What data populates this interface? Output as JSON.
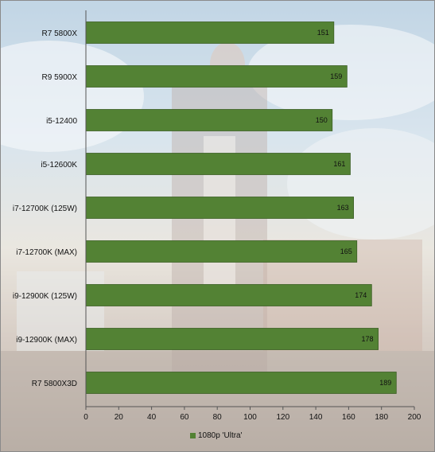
{
  "chart_data": {
    "type": "bar",
    "orientation": "horizontal",
    "categories": [
      "R7 5800X",
      "R9 5900X",
      "i5-12400",
      "i5-12600K",
      "i7-12700K (125W)",
      "i7-12700K (MAX)",
      "i9-12900K (125W)",
      "i9-12900K (MAX)",
      "R7 5800X3D"
    ],
    "series": [
      {
        "name": "1080p 'Ultra'",
        "values": [
          151,
          159,
          150,
          161,
          163,
          165,
          174,
          178,
          189
        ]
      }
    ],
    "xlim": [
      0,
      200
    ],
    "xticks": [
      0,
      20,
      40,
      60,
      80,
      100,
      120,
      140,
      160,
      180,
      200
    ],
    "grid": false,
    "legend": "bottom",
    "data_labels": true,
    "colors": {
      "bar": "#538234",
      "bar_border": "#3c5f25",
      "label_text": "#111111"
    }
  }
}
